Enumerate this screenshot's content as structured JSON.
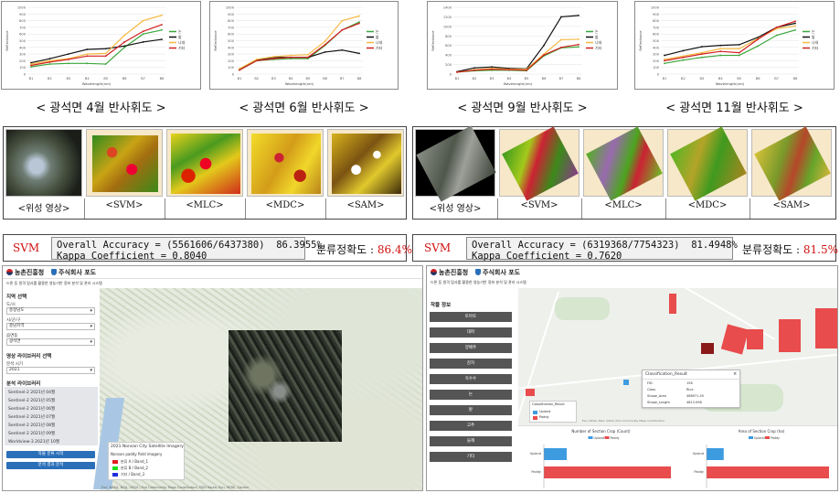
{
  "charts": [
    {
      "caption": "< 광석면 4월 반사휘도 >",
      "xlabel": "Wavelength(nm)",
      "ylabel": "Reflectance",
      "bands": [
        "B1",
        "B2",
        "B3",
        "B4",
        "B5",
        "B6",
        "B7",
        "B8"
      ],
      "yticks": [
        "0",
        "100",
        "200",
        "300",
        "400",
        "500",
        "600",
        "700",
        "800",
        "900",
        "1000"
      ],
      "legend": [
        "논",
        "밭",
        "나대",
        "기타"
      ],
      "colors": [
        "#3aa63a",
        "#111111",
        "#f5b942",
        "#d02020"
      ],
      "ymax": 1000,
      "series": [
        [
          110,
          150,
          160,
          160,
          150,
          400,
          600,
          660
        ],
        [
          170,
          230,
          300,
          370,
          380,
          420,
          480,
          520
        ],
        [
          150,
          200,
          230,
          300,
          310,
          580,
          800,
          880
        ],
        [
          130,
          180,
          220,
          270,
          270,
          480,
          640,
          740
        ]
      ]
    },
    {
      "caption": "< 광석면 6월 반사휘도 >",
      "xlabel": "Wavelength(nm)",
      "ylabel": "Reflectance",
      "bands": [
        "B1",
        "B2",
        "B3",
        "B4",
        "B5",
        "B6",
        "B7",
        "B8"
      ],
      "yticks": [
        "0",
        "100",
        "200",
        "300",
        "400",
        "500",
        "600",
        "700",
        "800",
        "900",
        "1000"
      ],
      "legend": [
        "논",
        "밭",
        "나대",
        "기타"
      ],
      "colors": [
        "#3aa63a",
        "#111111",
        "#f5b942",
        "#d02020"
      ],
      "ymax": 1000,
      "series": [
        [
          60,
          200,
          220,
          230,
          230,
          430,
          660,
          780
        ],
        [
          70,
          210,
          250,
          250,
          250,
          330,
          360,
          310
        ],
        [
          80,
          220,
          260,
          280,
          290,
          490,
          800,
          870
        ],
        [
          60,
          200,
          230,
          250,
          250,
          440,
          660,
          760
        ]
      ]
    },
    {
      "caption": "< 광석면 9월 반사휘도 >",
      "xlabel": "Wavelength(nm)",
      "ylabel": "Reflectance",
      "bands": [
        "B1",
        "B2",
        "B3",
        "B4",
        "B5",
        "B6",
        "B7",
        "B8"
      ],
      "yticks": [
        "0",
        "200",
        "400",
        "600",
        "800",
        "1000",
        "1200",
        "1400"
      ],
      "legend": [
        "논",
        "밭",
        "나대",
        "기타"
      ],
      "colors": [
        "#3aa63a",
        "#111111",
        "#f5b942",
        "#d02020"
      ],
      "ymax": 1400,
      "series": [
        [
          40,
          70,
          80,
          80,
          70,
          380,
          550,
          570
        ],
        [
          50,
          130,
          150,
          120,
          110,
          600,
          1200,
          1230
        ],
        [
          40,
          90,
          120,
          100,
          100,
          420,
          720,
          730
        ],
        [
          40,
          80,
          100,
          90,
          80,
          400,
          560,
          620
        ]
      ]
    },
    {
      "caption": "< 광석면 11월 반사휘도 >",
      "xlabel": "Wavelength(nm)",
      "ylabel": "Reflectance",
      "bands": [
        "B1",
        "B2",
        "B3",
        "B4",
        "B5",
        "B6",
        "B7",
        "B8"
      ],
      "yticks": [
        "0",
        "100",
        "200",
        "300",
        "400",
        "500",
        "600",
        "700",
        "800",
        "900",
        "1000"
      ],
      "legend": [
        "논",
        "밭",
        "나대",
        "기타"
      ],
      "colors": [
        "#3aa63a",
        "#111111",
        "#f5b942",
        "#d02020"
      ],
      "ymax": 1000,
      "series": [
        [
          160,
          210,
          250,
          280,
          280,
          420,
          580,
          660
        ],
        [
          280,
          350,
          410,
          430,
          440,
          550,
          700,
          760
        ],
        [
          220,
          270,
          320,
          380,
          380,
          530,
          680,
          720
        ],
        [
          200,
          250,
          300,
          340,
          320,
          520,
          700,
          790
        ]
      ]
    }
  ],
  "tile_panels": [
    {
      "labels": [
        "<위성 영상>",
        "<SVM>",
        "<MLC>",
        "<MDC>",
        "<SAM>"
      ]
    },
    {
      "labels": [
        "<위성 영상>",
        "<SVM>",
        "<MLC>",
        "<MDC>",
        "<SAM>"
      ]
    }
  ],
  "accuracy": [
    {
      "method": "SVM",
      "line1": "Overall Accuracy = (5561606/6437380)  86.3955%",
      "line2": "Kappa Coefficient = 0.8040",
      "result_label": "분류정확도 : ",
      "result_value": "86.4%"
    },
    {
      "method": "SVM",
      "line1": "Overall Accuracy = (6319368/7754323)  81.4948%",
      "line2": "Kappa Coefficient = 0.7620",
      "result_label": "분류정확도 : ",
      "result_value": "81.5%"
    }
  ],
  "left_app": {
    "logo1": "농촌진흥청",
    "logo2": "주식회사 포도",
    "subtitle": "드론 등 원격 탐사를 활용한 영농기반 정보 분석 및 관리 시스템",
    "section_region": "지역 선택",
    "label_province": "도/시",
    "val_province": "충청남도",
    "label_city": "시/군/구",
    "val_city": "충남지역",
    "label_town": "읍면동",
    "val_town": "광석면",
    "section_layer": "영상 라이브러리 선택",
    "label_year": "분석 시기",
    "val_year": "2021",
    "section_list": "분석 라이브러리",
    "list_items": [
      "Sentinel-2 2021년 04월",
      "Sentinel-2 2021년 05월",
      "Sentinel-2 2021년 06월",
      "Sentinel-2 2021년 07월",
      "Sentinel-2 2021년 08월",
      "Sentinel-2 2021년 09월",
      "Worldview-3 2021년 10월"
    ],
    "btn1": "작물 분류 시작",
    "btn2": "분석 결과 분석",
    "legend_title": "2021 Nonsan City Satellite Imagery",
    "legend_sub": "Nonsan paddy field imagery",
    "legend_items": [
      "분류 A / Band_1",
      "분류 B / Band_2",
      "기타 / Band_3"
    ],
    "attribution": "Esri, NASA, NGA, USGS | Esri Community Maps Contributors, ESRI Korea, Esri, HERE, Garmin"
  },
  "right_app": {
    "logo1": "농촌진흥청",
    "logo2": "주식회사 포도",
    "subtitle": "드론 등 원격 탐사를 활용한 영농기반 정보 분석 및 관리 시스템",
    "section": "작물 정보",
    "buttons": [
      "토마토",
      "대파",
      "양배추",
      "감자",
      "옥수수",
      "논",
      "밭",
      "고추",
      "들깨",
      "기타"
    ],
    "popup_title": "Classification_Result",
    "popup_rows": [
      [
        "FID",
        "158"
      ],
      [
        "Class",
        "Rice"
      ],
      [
        "Shape_Area",
        "468971.45"
      ],
      [
        "Shape_Length",
        "4813.098"
      ]
    ],
    "legend_title": "Classification_Result",
    "legend_items": [
      "Upland",
      "Paddy"
    ],
    "chart1_title": "Number of Section Crop (Count)",
    "chart2_title": "Area of Section Crop (ha)",
    "bar_categories": [
      "Upland",
      "Paddy"
    ],
    "chart1_values": [
      18,
      100
    ],
    "chart2_values": [
      14,
      100
    ],
    "bar_colors": [
      "#3d9be0",
      "#e84c4c"
    ],
    "attribution": "Esri, NASA, NGA, USGS | Esri Community Maps Contributors"
  }
}
